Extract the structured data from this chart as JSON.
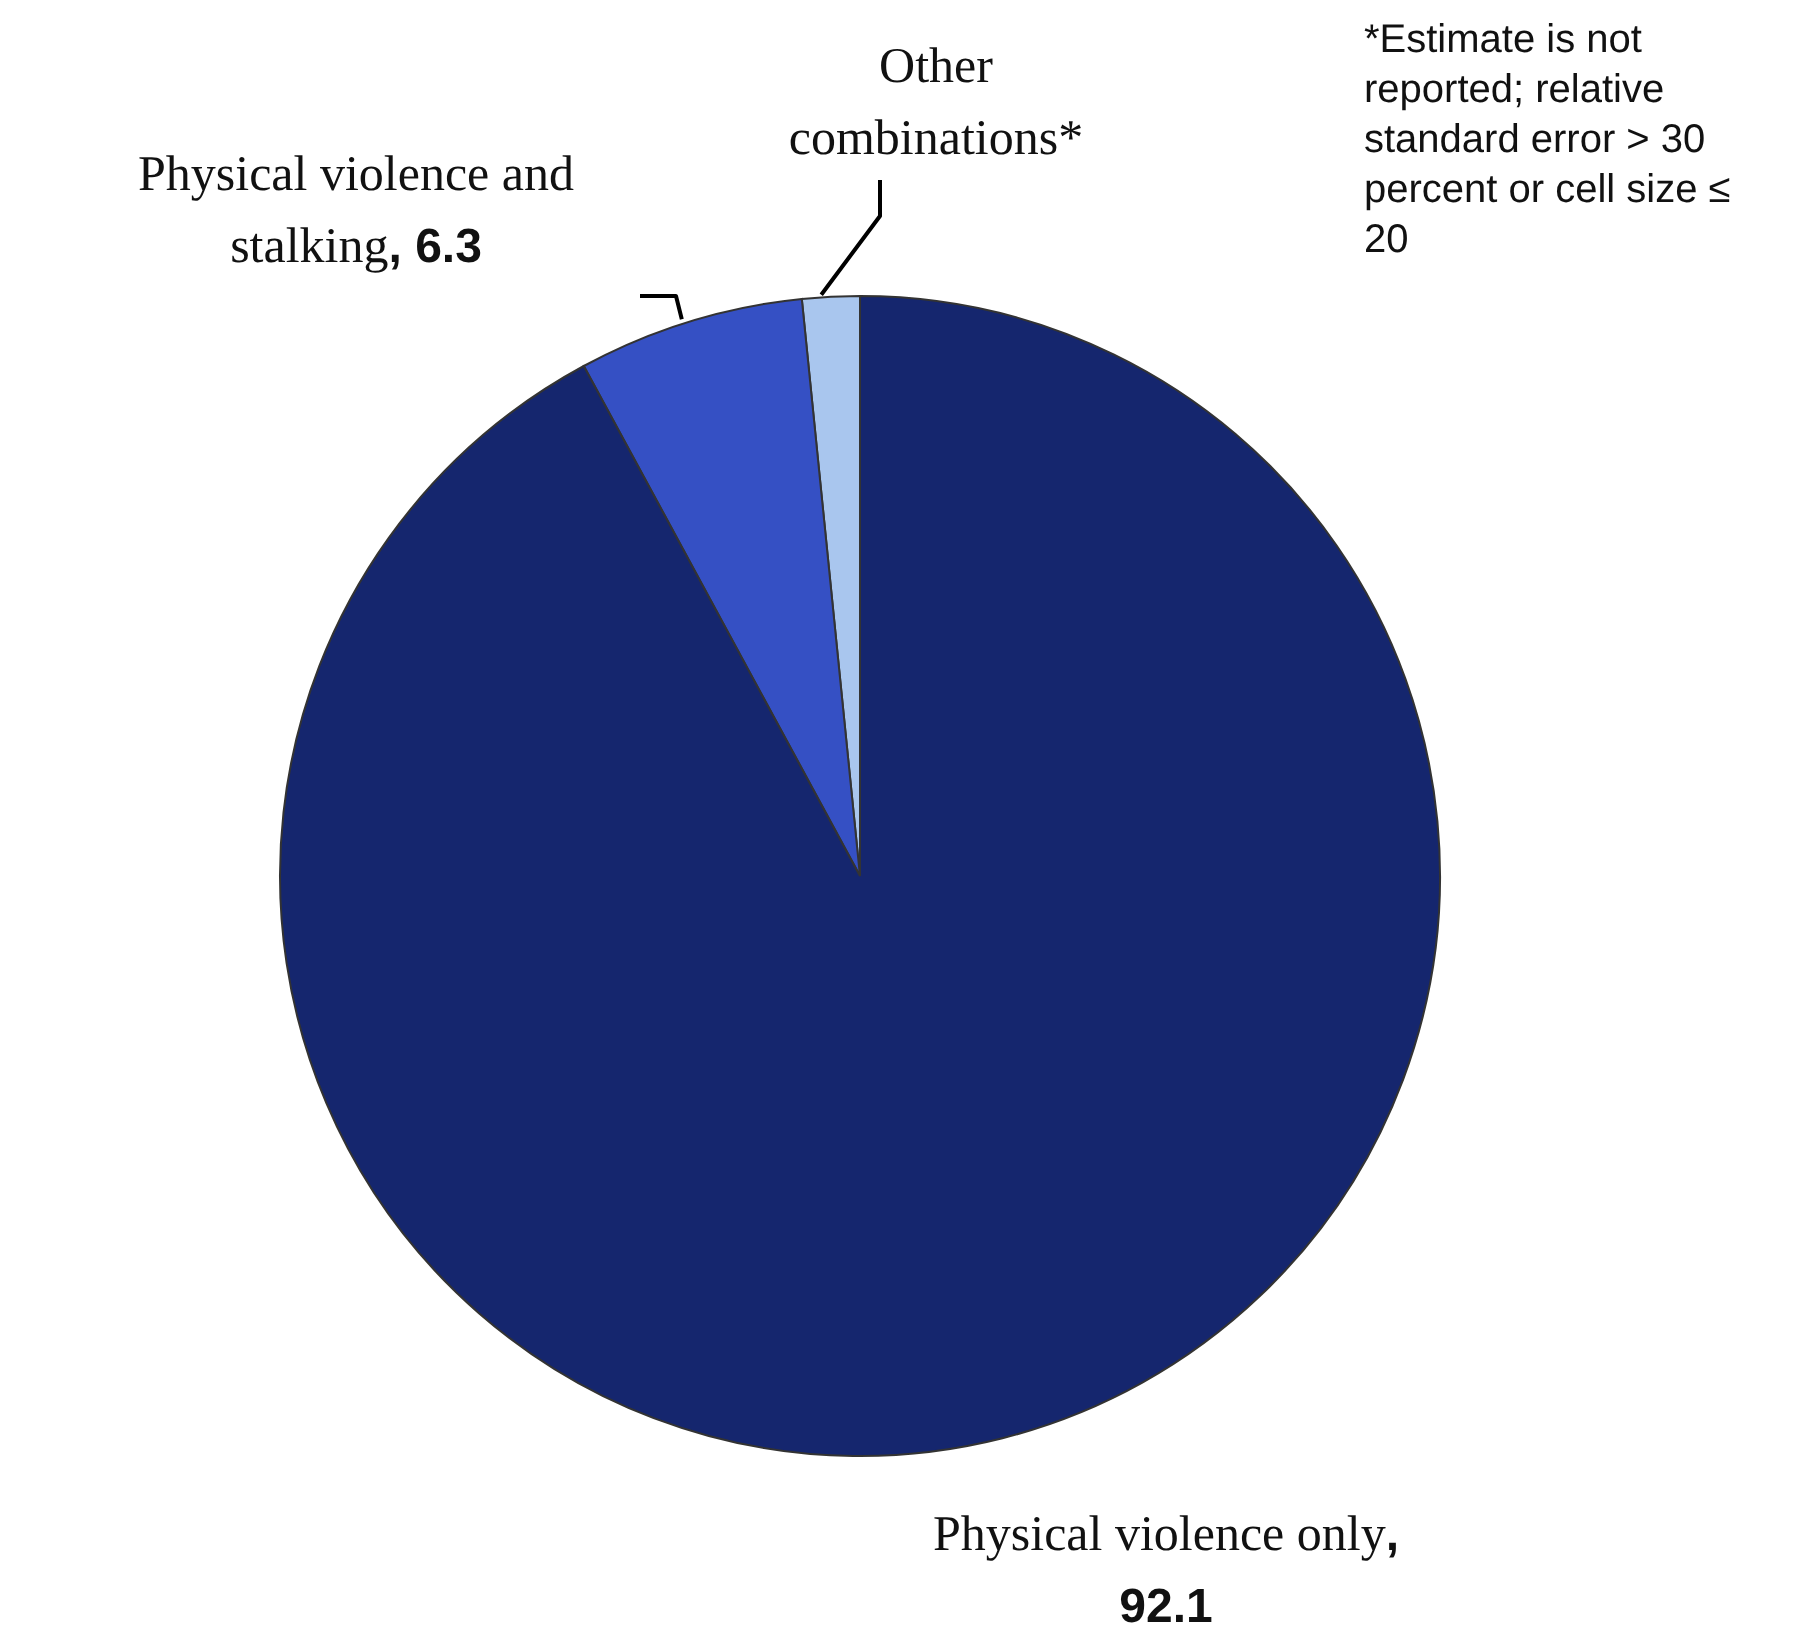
{
  "chart_data": {
    "type": "pie",
    "categories": [
      "Other combinations*",
      "Physical violence and stalking",
      "Physical violence only"
    ],
    "values": [
      1.6,
      6.3,
      92.1
    ],
    "colors": [
      "#a9c6ee",
      "#3550c4",
      "#15266e"
    ],
    "value_labels": [
      null,
      ", 6.3",
      ", 92.1"
    ],
    "annotations": [
      "*Estimate is not reported; relative standard error > 30 percent or cell size ≤ 20"
    ]
  }
}
